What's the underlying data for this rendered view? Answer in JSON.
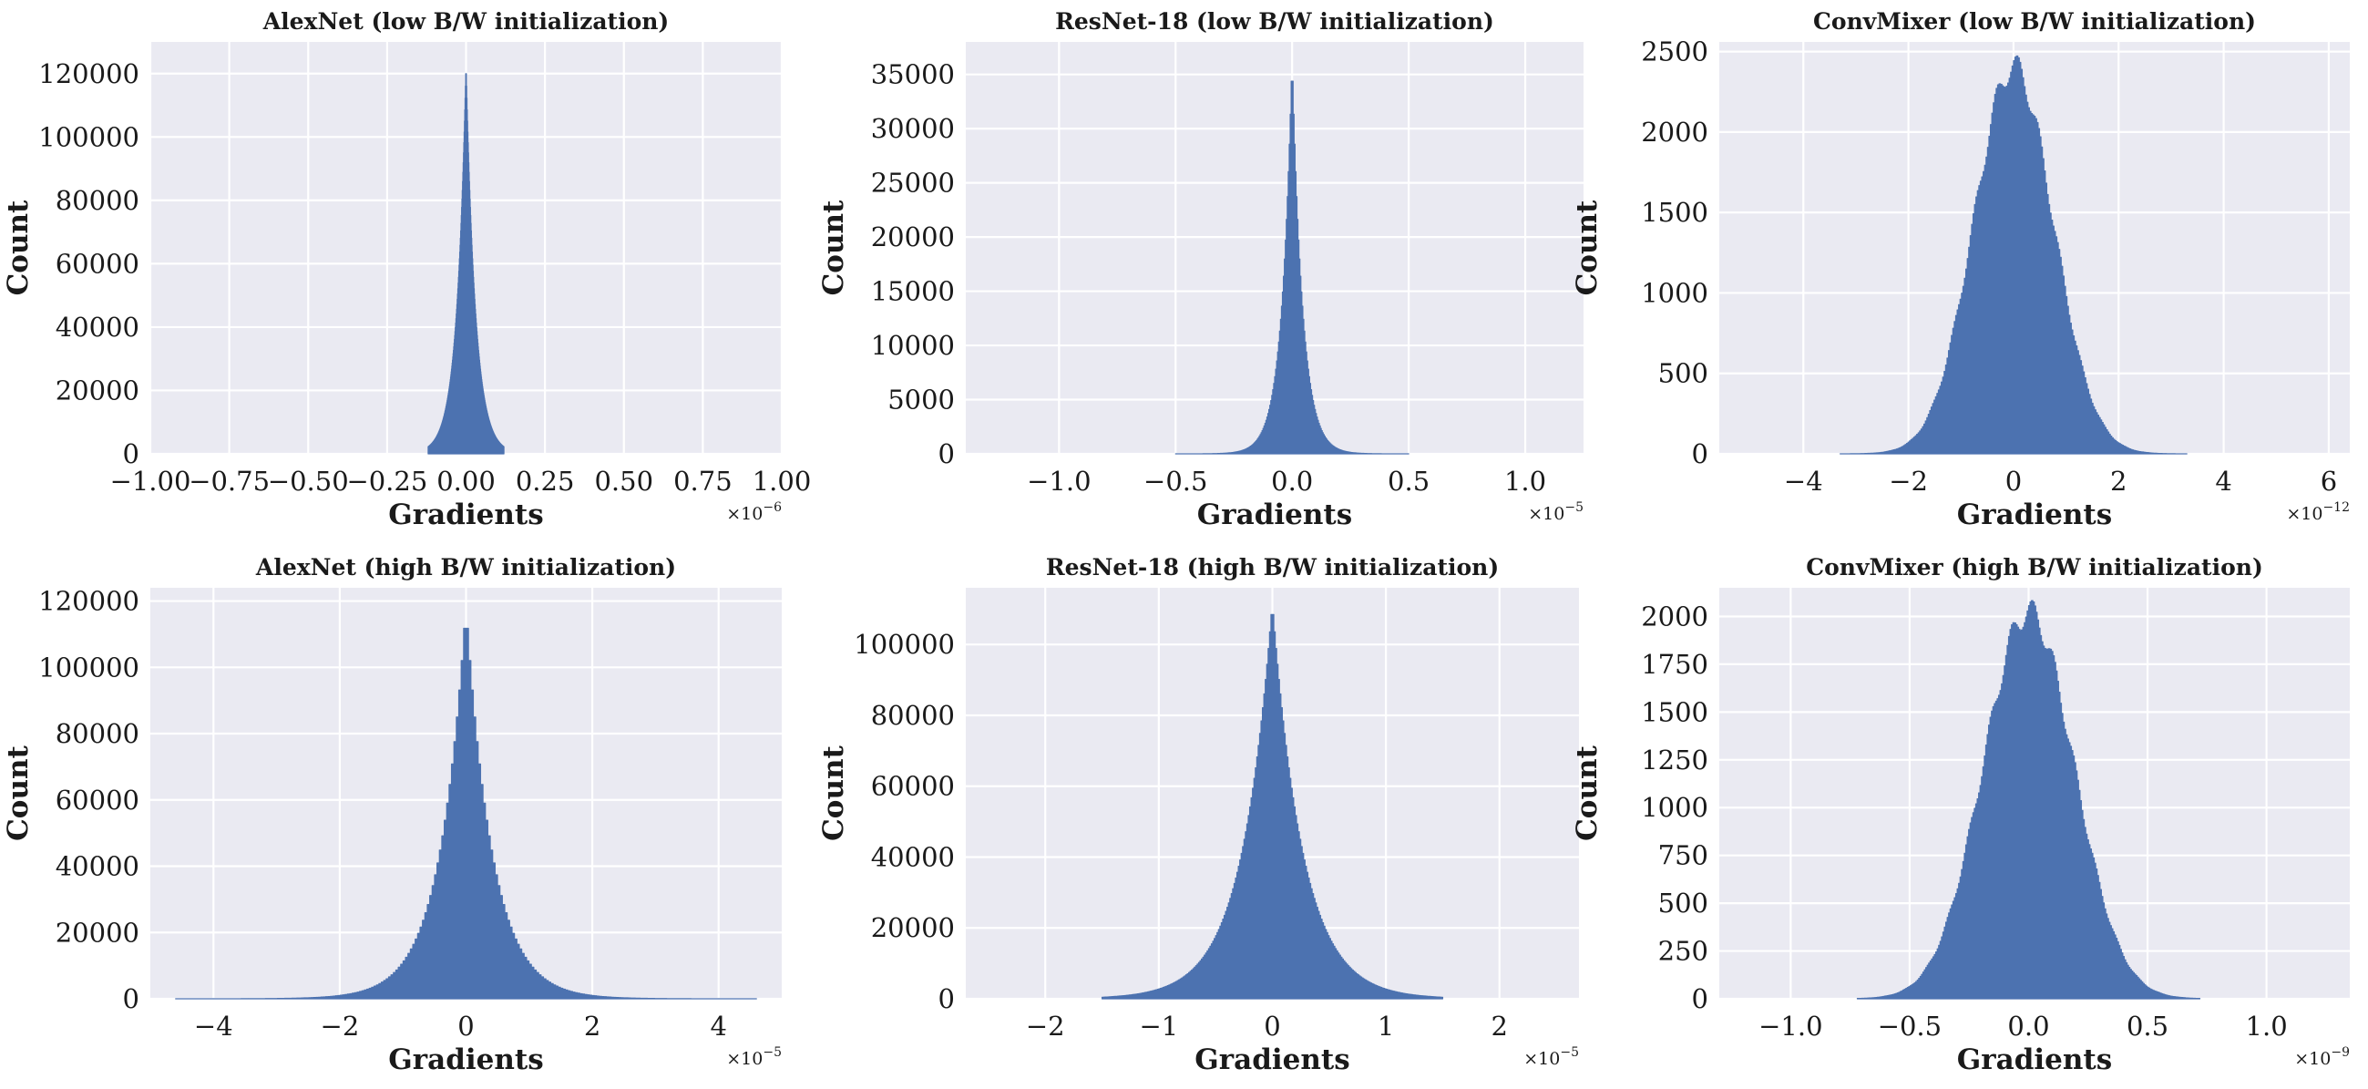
{
  "colors": {
    "bar": "#4c72b0",
    "panel_background": "#eaeaf2",
    "grid": "#ffffff"
  },
  "chart_data": [
    {
      "type": "histogram",
      "title": "AlexNet (low B/W initialization)",
      "xlabel": "Gradients",
      "ylabel": "Count",
      "x_scale_note": "×10^−6",
      "x_scale_mantissa": "×10",
      "x_scale_exponent": "−6",
      "xlim": [
        -1.0,
        1.0
      ],
      "ylim": [
        0,
        130000
      ],
      "xticks": [
        -1.0,
        -0.75,
        -0.5,
        -0.25,
        0.0,
        0.25,
        0.5,
        0.75,
        1.0
      ],
      "xtick_labels": [
        "−1.00",
        "−0.75",
        "−0.50",
        "−0.25",
        "0.00",
        "0.25",
        "0.50",
        "0.75",
        "1.00"
      ],
      "yticks": [
        0,
        20000,
        40000,
        60000,
        80000,
        100000,
        120000
      ],
      "ytick_labels": [
        "0",
        "20000",
        "40000",
        "60000",
        "80000",
        "100000",
        "120000"
      ],
      "grid": true,
      "distribution": {
        "shape": "laplace",
        "center": 0.0,
        "peak": 122000,
        "scale": 0.03,
        "range": [
          -0.12,
          0.12
        ]
      }
    },
    {
      "type": "histogram",
      "title": "ResNet-18 (low B/W initialization)",
      "xlabel": "Gradients",
      "ylabel": "Count",
      "x_scale_note": "×10^−5",
      "x_scale_mantissa": "×10",
      "x_scale_exponent": "−5",
      "xlim": [
        -1.4,
        1.25
      ],
      "ylim": [
        0,
        38000
      ],
      "xticks": [
        -1.0,
        -0.5,
        0.0,
        0.5,
        1.0
      ],
      "xtick_labels": [
        "−1.0",
        "−0.5",
        "0.0",
        "0.5",
        "1.0"
      ],
      "yticks": [
        0,
        5000,
        10000,
        15000,
        20000,
        25000,
        30000,
        35000
      ],
      "ytick_labels": [
        "0",
        "5000",
        "10000",
        "15000",
        "20000",
        "25000",
        "30000",
        "35000"
      ],
      "grid": true,
      "distribution": {
        "shape": "laplace",
        "center": 0.0,
        "peak": 36000,
        "scale": 0.045,
        "range": [
          -0.5,
          0.5
        ]
      }
    },
    {
      "type": "histogram",
      "title": "ConvMixer (low B/W initialization)",
      "xlabel": "Gradients",
      "ylabel": "Count",
      "x_scale_note": "×10^−12",
      "x_scale_mantissa": "×10",
      "x_scale_exponent": "−12",
      "xlim": [
        -5.6,
        6.4
      ],
      "ylim": [
        0,
        2560
      ],
      "xticks": [
        -4,
        -2,
        0,
        2,
        4,
        6
      ],
      "xtick_labels": [
        "−4",
        "−2",
        "0",
        "2",
        "4",
        "6"
      ],
      "yticks": [
        0,
        500,
        1000,
        1500,
        2000,
        2500
      ],
      "ytick_labels": [
        "0",
        "500",
        "1000",
        "1500",
        "2000",
        "2500"
      ],
      "grid": true,
      "distribution": {
        "shape": "gaussian",
        "center": 0.0,
        "peak": 2400,
        "scale": 0.75,
        "range": [
          -3.3,
          3.3
        ]
      }
    },
    {
      "type": "histogram",
      "title": "AlexNet (high B/W initialization)",
      "xlabel": "Gradients",
      "ylabel": "Count",
      "x_scale_note": "×10^−5",
      "x_scale_mantissa": "×10",
      "x_scale_exponent": "−5",
      "xlim": [
        -5.0,
        5.0
      ],
      "ylim": [
        0,
        124000
      ],
      "xticks": [
        -4,
        -2,
        0,
        2,
        4
      ],
      "xtick_labels": [
        "−4",
        "−2",
        "0",
        "2",
        "4"
      ],
      "yticks": [
        0,
        20000,
        40000,
        60000,
        80000,
        100000,
        120000
      ],
      "ytick_labels": [
        "0",
        "20000",
        "40000",
        "60000",
        "80000",
        "100000",
        "120000"
      ],
      "grid": true,
      "distribution": {
        "shape": "laplace",
        "center": 0.0,
        "peak": 117000,
        "scale": 0.42,
        "range": [
          -4.6,
          4.6
        ]
      }
    },
    {
      "type": "histogram",
      "title": "ResNet-18 (high B/W initialization)",
      "xlabel": "Gradients",
      "ylabel": "Count",
      "x_scale_note": "×10^−5",
      "x_scale_mantissa": "×10",
      "x_scale_exponent": "−5",
      "xlim": [
        -2.7,
        2.7
      ],
      "ylim": [
        0,
        116000
      ],
      "xticks": [
        -2,
        -1,
        0,
        1,
        2
      ],
      "xtick_labels": [
        "−2",
        "−1",
        "0",
        "1",
        "2"
      ],
      "yticks": [
        0,
        20000,
        40000,
        60000,
        80000,
        100000
      ],
      "ytick_labels": [
        "0",
        "20000",
        "40000",
        "60000",
        "80000",
        "100000"
      ],
      "grid": true,
      "distribution": {
        "shape": "laplace",
        "center": 0.0,
        "peak": 111000,
        "scale": 0.27,
        "range": [
          -1.5,
          1.5
        ]
      }
    },
    {
      "type": "histogram",
      "title": "ConvMixer (high B/W initialization)",
      "xlabel": "Gradients",
      "ylabel": "Count",
      "x_scale_note": "×10^−9",
      "x_scale_mantissa": "×10",
      "x_scale_exponent": "−9",
      "xlim": [
        -1.3,
        1.35
      ],
      "ylim": [
        0,
        2150
      ],
      "xticks": [
        -1.0,
        -0.5,
        0.0,
        0.5,
        1.0
      ],
      "xtick_labels": [
        "−1.0",
        "−0.5",
        "0.0",
        "0.5",
        "1.0"
      ],
      "yticks": [
        0,
        250,
        500,
        750,
        1000,
        1250,
        1500,
        1750,
        2000
      ],
      "ytick_labels": [
        "0",
        "250",
        "500",
        "750",
        "1000",
        "1250",
        "1500",
        "1750",
        "2000"
      ],
      "grid": true,
      "distribution": {
        "shape": "gaussian",
        "center": 0.0,
        "peak": 2020,
        "scale": 0.19,
        "range": [
          -0.72,
          0.72
        ]
      }
    }
  ]
}
